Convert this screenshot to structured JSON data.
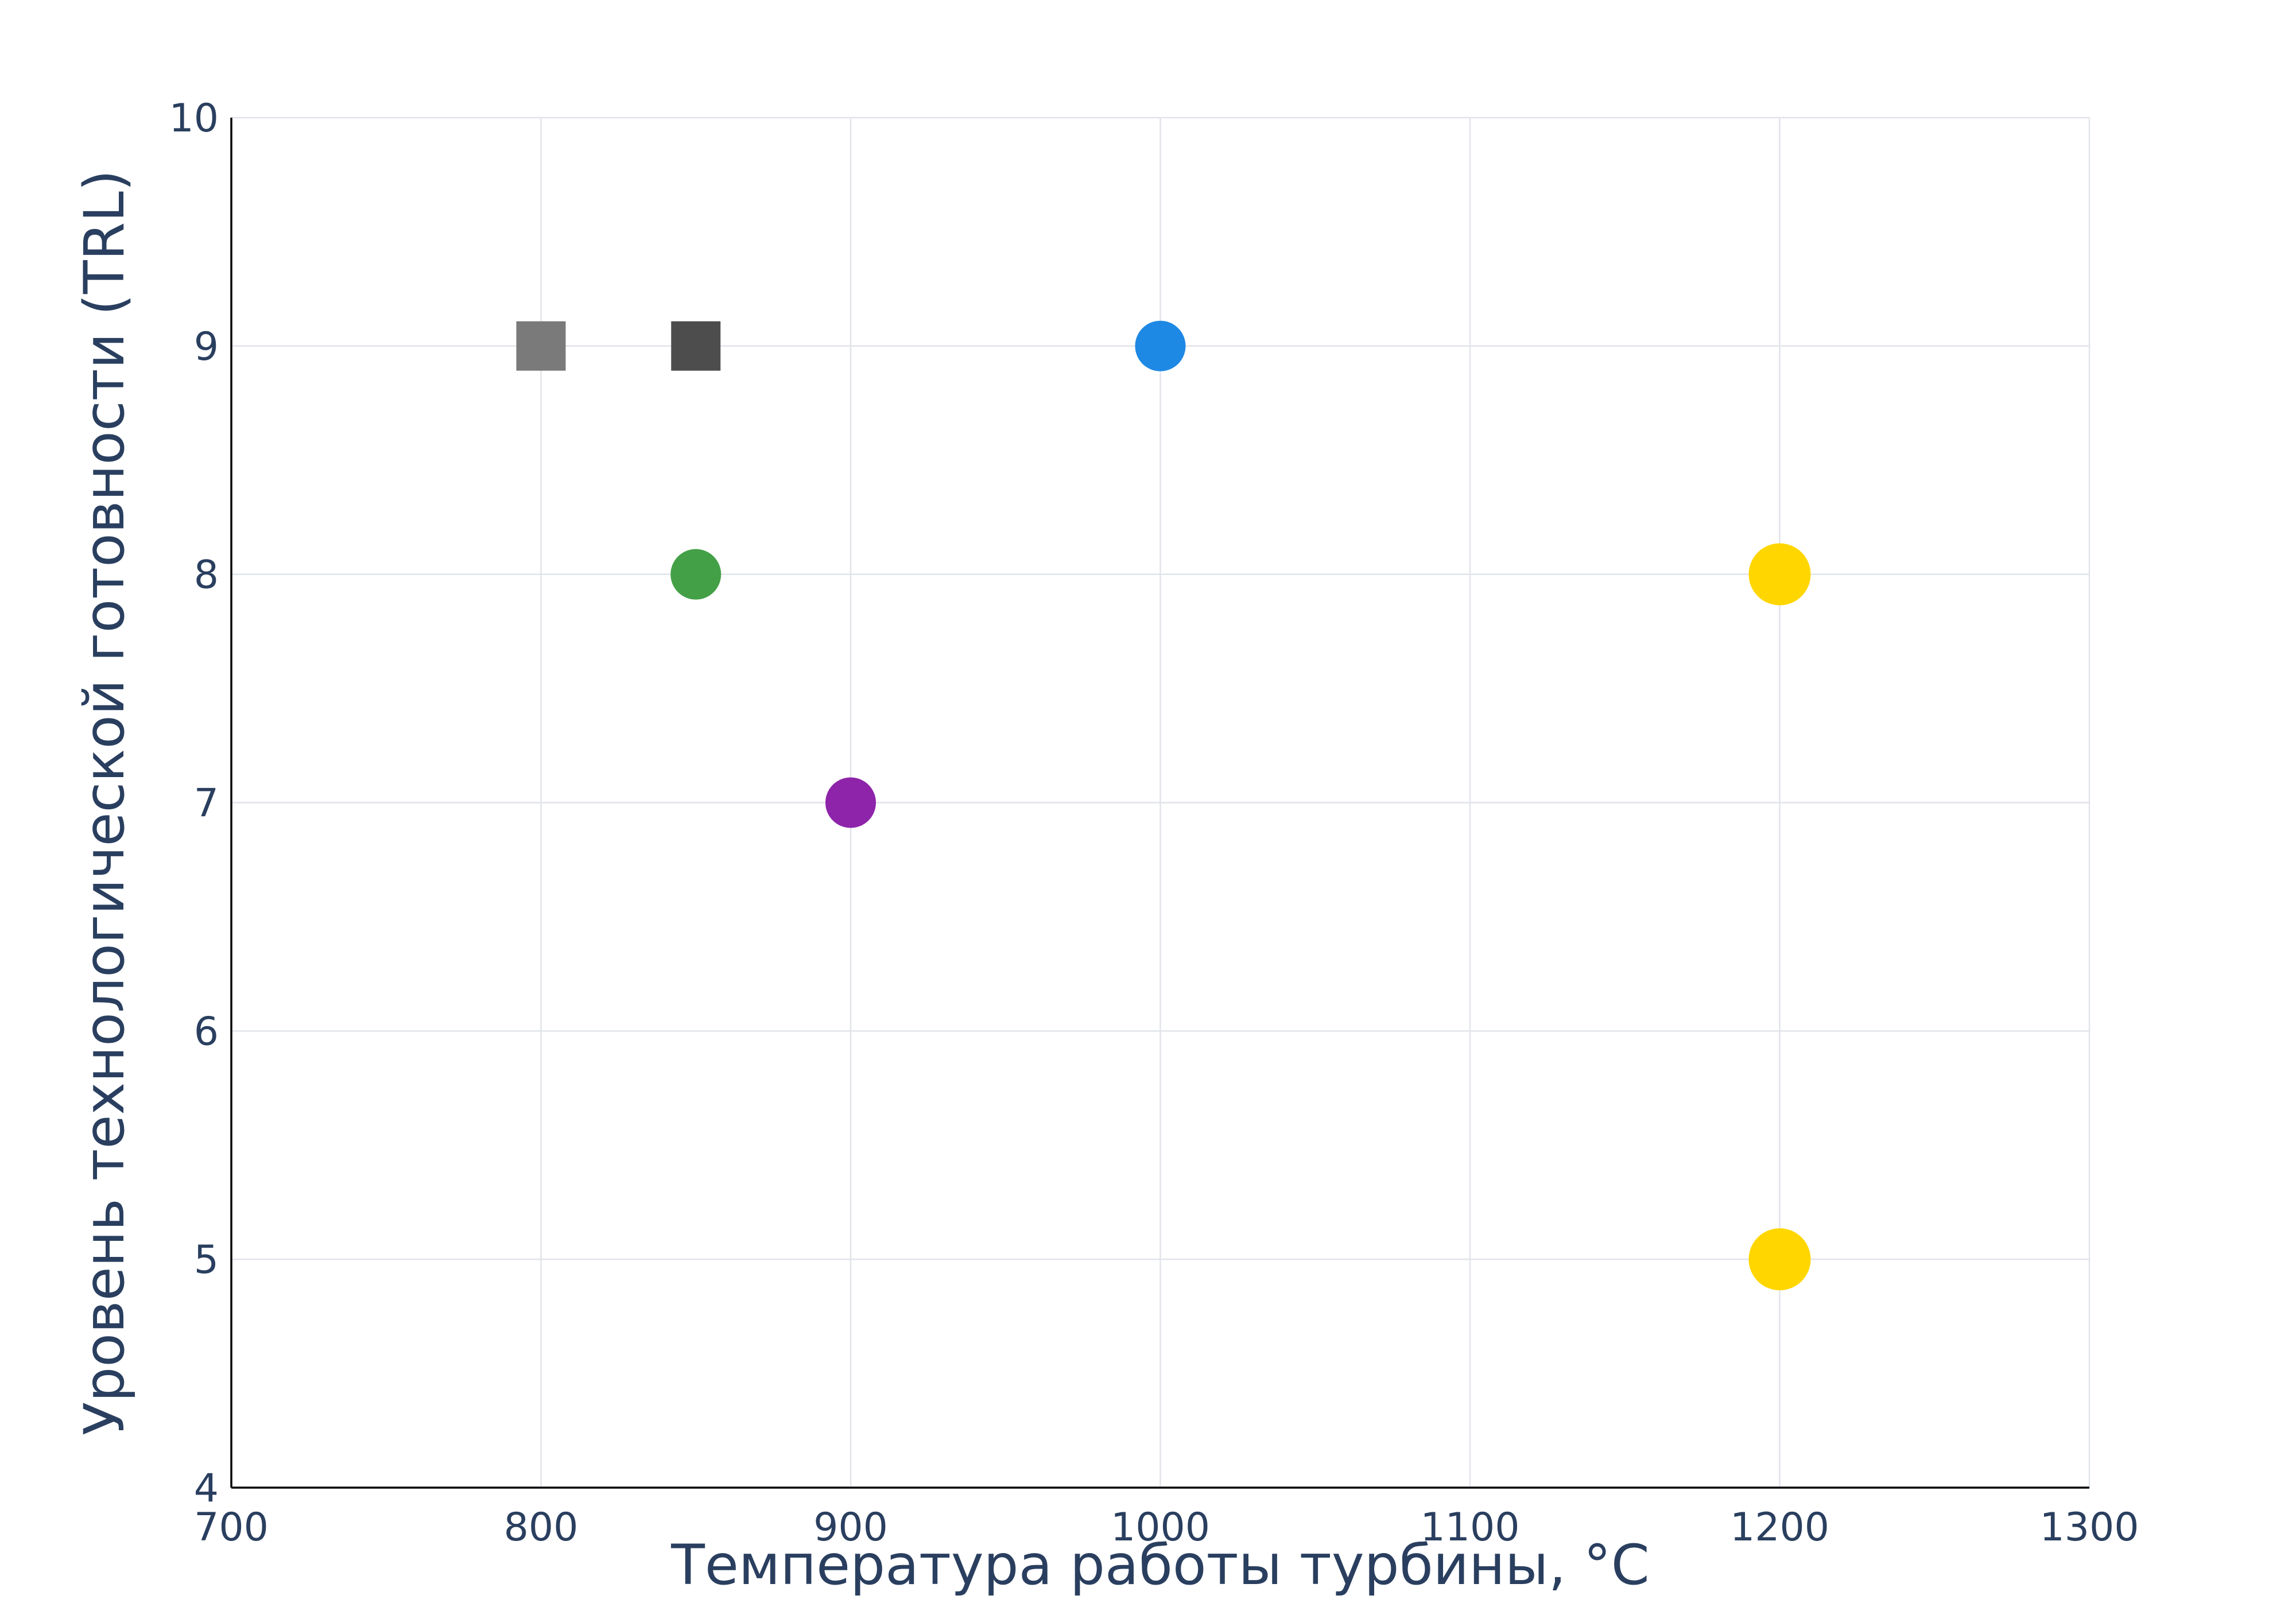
{
  "chart_data": {
    "type": "scatter",
    "xlabel": "Температура работы турбины, °C",
    "ylabel": "Уровень технологической готовности (TRL)",
    "xlim": [
      700,
      1300
    ],
    "ylim": [
      4,
      10
    ],
    "xticks": [
      700,
      800,
      900,
      1000,
      1100,
      1200,
      1300
    ],
    "yticks": [
      4,
      5,
      6,
      7,
      8,
      9,
      10
    ],
    "grid": true,
    "legend": "none",
    "points": [
      {
        "x": 800,
        "y": 9,
        "marker": "square",
        "color": "#7a7a7a"
      },
      {
        "x": 850,
        "y": 9,
        "marker": "square",
        "color": "#4d4d4d"
      },
      {
        "x": 1000,
        "y": 9,
        "marker": "circle",
        "color": "#1e88e5"
      },
      {
        "x": 850,
        "y": 8,
        "marker": "circle",
        "color": "#43a047"
      },
      {
        "x": 1200,
        "y": 8,
        "marker": "circle",
        "color": "#ffd600"
      },
      {
        "x": 900,
        "y": 7,
        "marker": "circle",
        "color": "#8e24aa"
      },
      {
        "x": 1200,
        "y": 5,
        "marker": "circle",
        "color": "#ffd600"
      }
    ]
  }
}
